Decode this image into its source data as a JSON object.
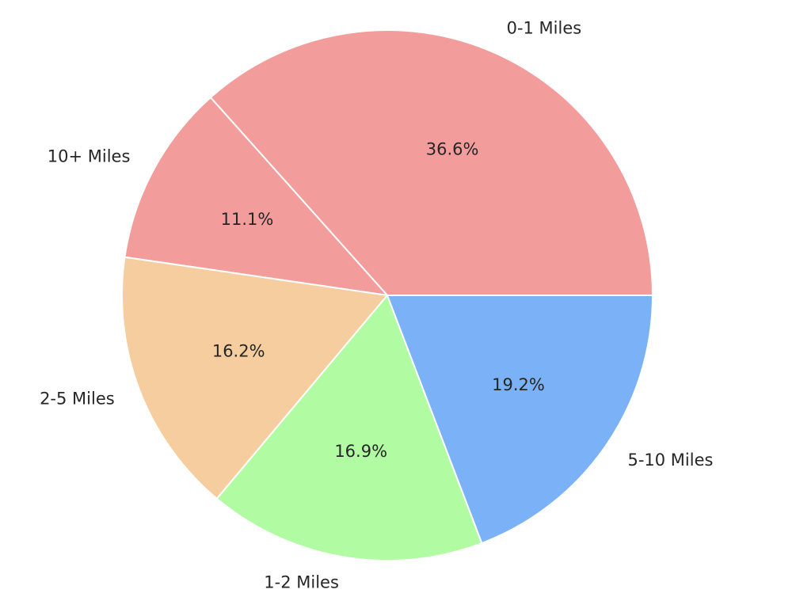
{
  "chart_data": {
    "type": "pie",
    "title": "",
    "categories": [
      "0-1 Miles",
      "10+ Miles",
      "2-5 Miles",
      "1-2 Miles",
      "5-10 Miles"
    ],
    "values": [
      36.6,
      11.1,
      16.2,
      16.9,
      19.2
    ],
    "value_labels": [
      "36.6%",
      "11.1%",
      "16.2%",
      "16.9%",
      "19.2%"
    ],
    "colors": [
      "#f29d9b",
      "#f29d9b",
      "#f5cd9f",
      "#b1fba3",
      "#7bb1f7"
    ],
    "start_angle_deg": 0,
    "direction": "counterclockwise",
    "legend": "none",
    "grid": false
  }
}
